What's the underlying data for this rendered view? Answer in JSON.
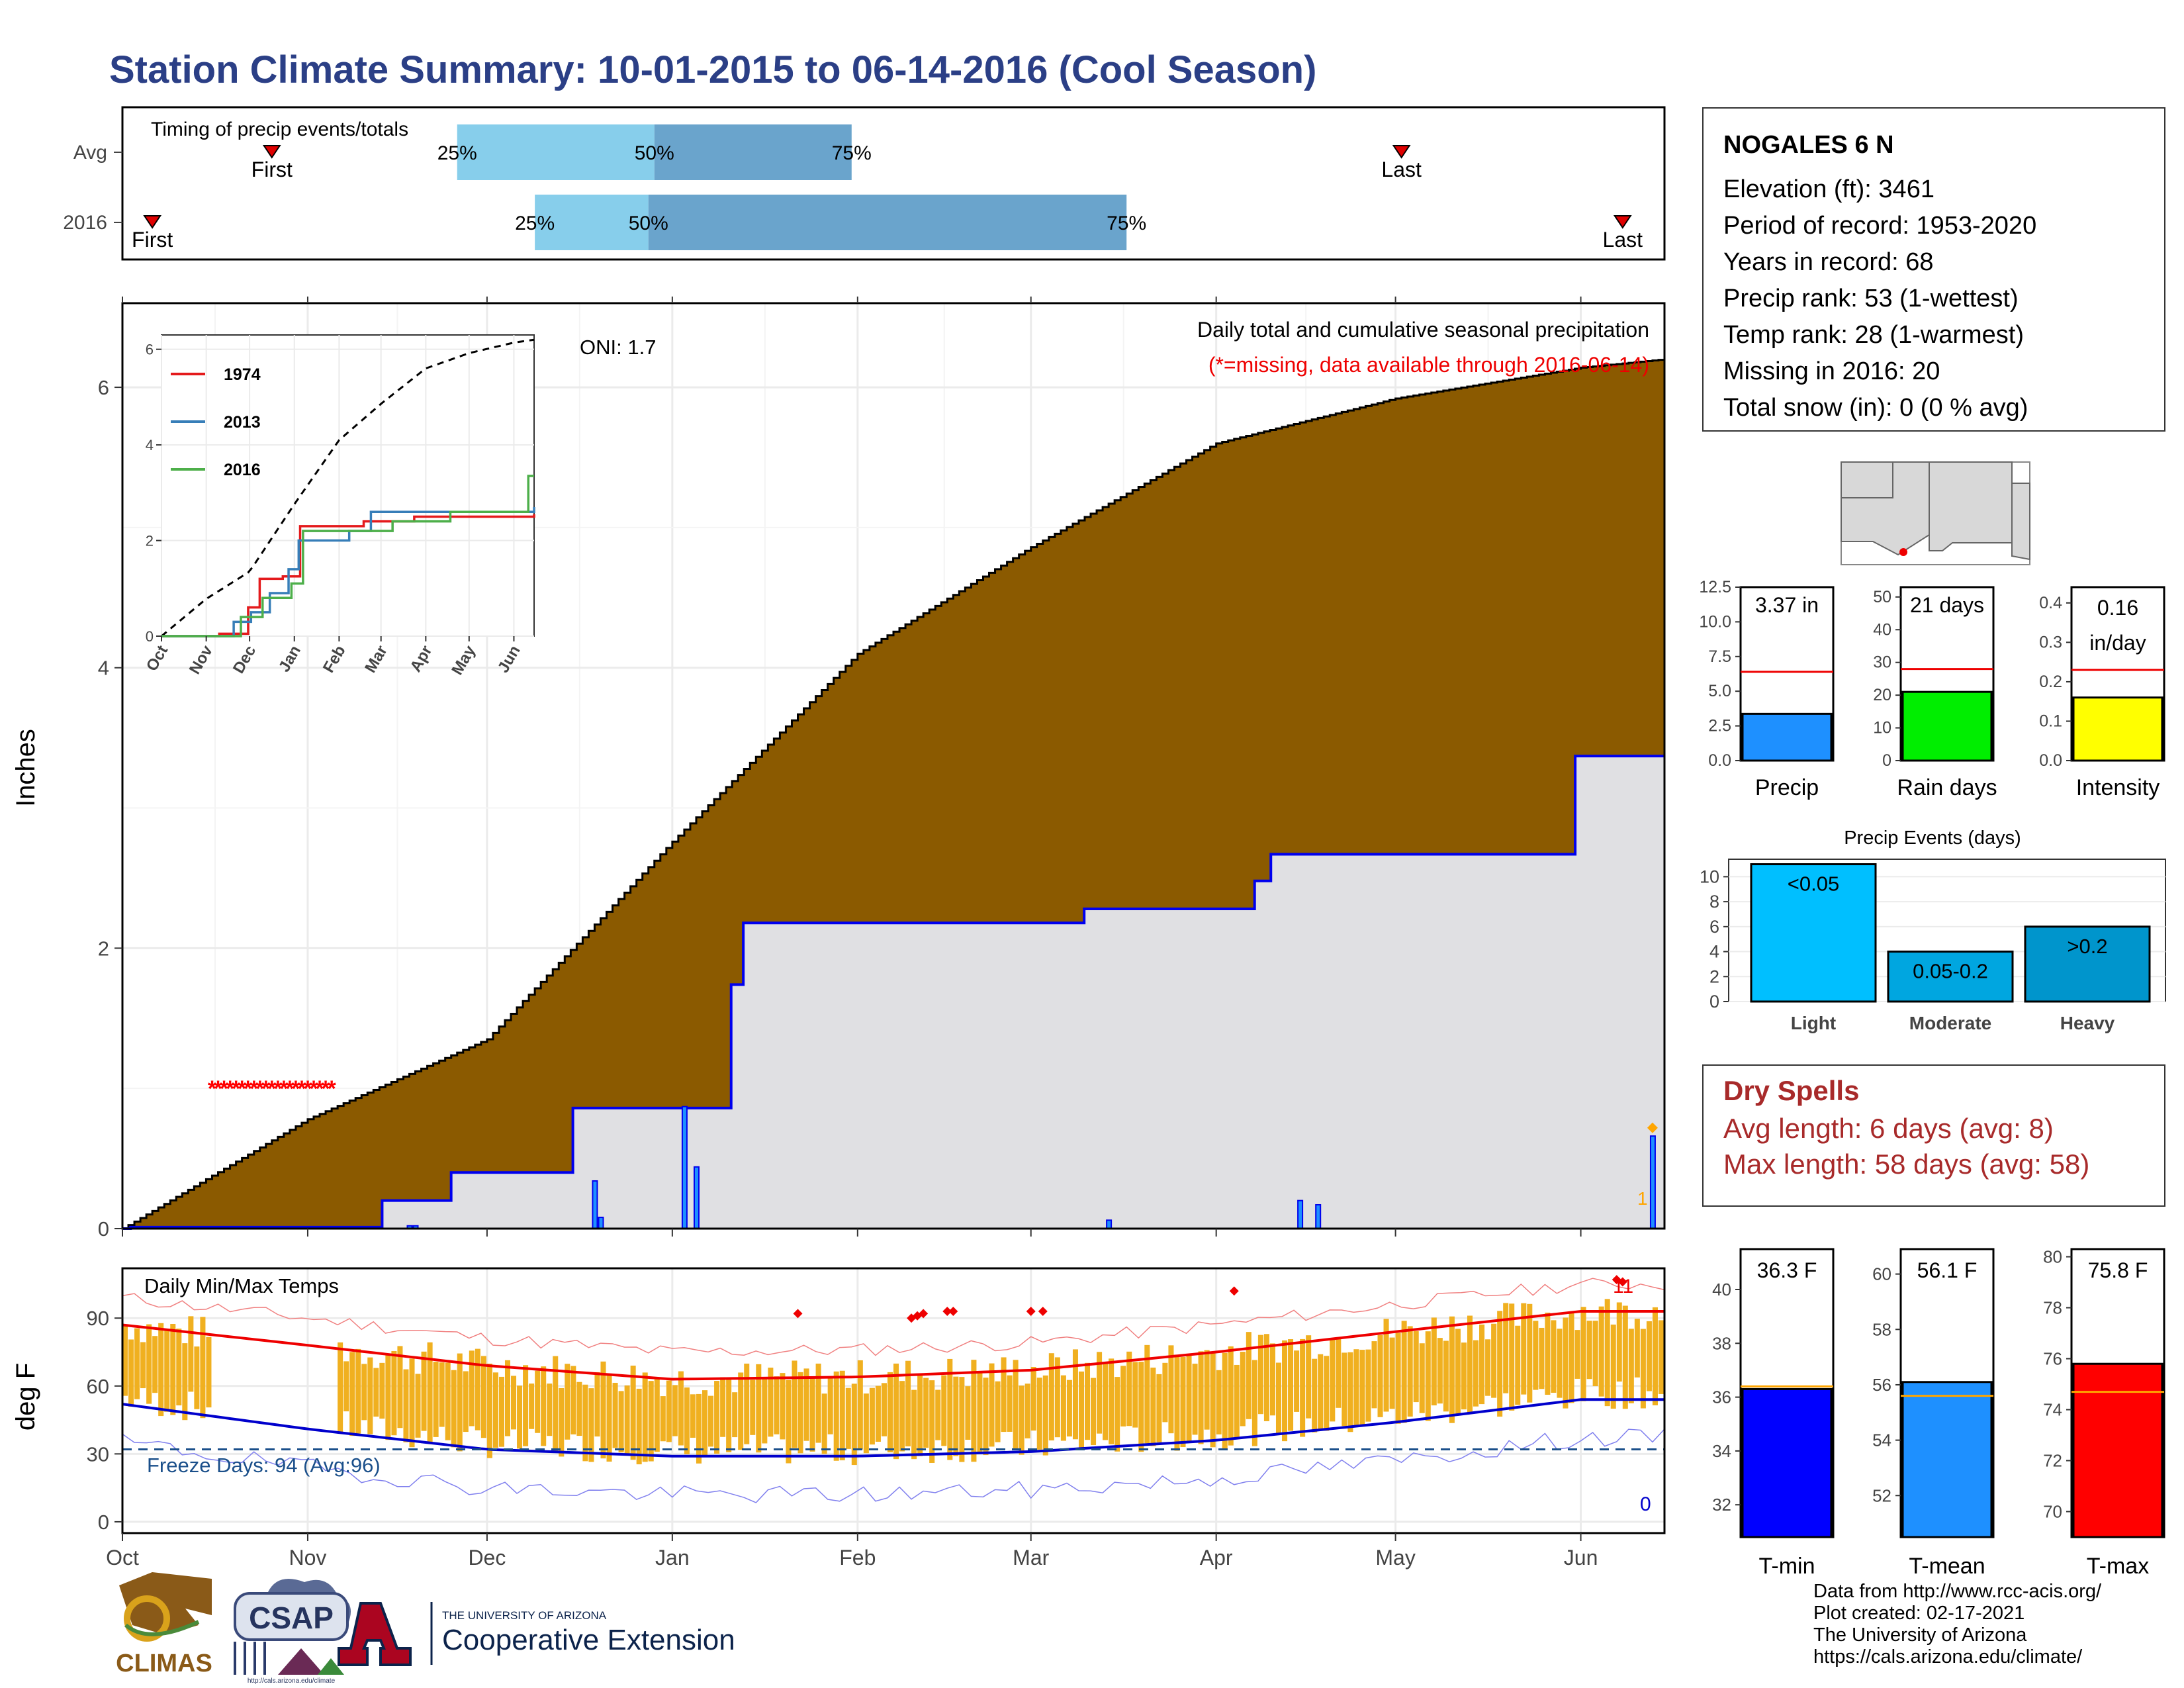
{
  "title": "Station Climate Summary: 10-01-2015 to 06-14-2016 (Cool Season)",
  "timing": {
    "label": "Timing of precip events/totals",
    "rows": [
      {
        "name": "Avg",
        "first": "First",
        "last": "Last",
        "p25": "25%",
        "p50": "50%",
        "p75": "75%",
        "first_day": 25,
        "last_day": 214,
        "p25_day": 56,
        "p50_day": 89,
        "p75_day": 122
      },
      {
        "name": "2016",
        "first": "First",
        "last": "Last",
        "p25": "25%",
        "p50": "50%",
        "p75": "75%",
        "first_day": 5,
        "last_day": 251,
        "p25_day": 69,
        "p50_day": 88,
        "p75_day": 168
      }
    ],
    "colors": {
      "light": "#87ceeb",
      "dark": "#6aa4cc",
      "marker": "#e00000"
    }
  },
  "station": {
    "name": "NOGALES 6 N",
    "lines": [
      "Elevation (ft): 3461",
      "Period of record: 1953-2020",
      "Years in record: 68",
      "Precip rank: 53 (1-wettest)",
      "Temp rank: 28 (1-warmest)",
      "Missing in 2016: 20",
      "Total snow (in): 0 (0 % avg)"
    ]
  },
  "precip_panel": {
    "ylabel": "Inches",
    "oni": "ONI: 1.7",
    "caption1": "Daily total and cumulative seasonal precipitation",
    "caption2": "(*=missing, data available through 2016-06-14)",
    "yticks": [
      "0",
      "2",
      "4",
      "6"
    ],
    "ylim": [
      0,
      6.6
    ],
    "trace_mark": "1",
    "colors": {
      "avg_fill": "#8b5a00",
      "obs_fill": "#e0e0e3",
      "obs_line": "#0000ee",
      "missing": "#ff0000",
      "trace": "#ffa500"
    }
  },
  "inset": {
    "years": [
      "1974",
      "2013",
      "2016"
    ],
    "colors": [
      "#e41a1c",
      "#377eb8",
      "#4daf4a"
    ],
    "months": [
      "Oct",
      "Nov",
      "Dec",
      "Jan",
      "Feb",
      "Mar",
      "Apr",
      "May",
      "Jun"
    ],
    "yticks": [
      "0",
      "2",
      "4",
      "6"
    ]
  },
  "temp_panel": {
    "ylabel": "deg F",
    "label": "Daily Min/Max Temps",
    "freeze": "Freeze Days: 94 (Avg:96)",
    "count_max": "11",
    "count_min": "0",
    "yticks": [
      "0",
      "30",
      "60",
      "90"
    ],
    "months": [
      "Oct",
      "Nov",
      "Dec",
      "Jan",
      "Feb",
      "Mar",
      "Apr",
      "May",
      "Jun"
    ],
    "colors": {
      "bars": "#f0b020",
      "max_avg": "#ee0000",
      "min_avg": "#0000cc",
      "freeze": "#1a4f8a"
    }
  },
  "mini": {
    "precip": {
      "value_label": "3.37 in",
      "value": 3.37,
      "avg": 6.4,
      "yticks": [
        "0.0",
        "2.5",
        "5.0",
        "7.5",
        "10.0",
        "12.5"
      ],
      "ymax": 12.5,
      "label": "Precip",
      "color": "#1e90ff"
    },
    "raindays": {
      "value_label": "21 days",
      "value": 21,
      "avg": 28,
      "yticks": [
        "0",
        "10",
        "20",
        "30",
        "40",
        "50"
      ],
      "ymax": 53,
      "label": "Rain days",
      "color": "#00ee00"
    },
    "intensity": {
      "value_label1": "0.16",
      "value_label2": "in/day",
      "value": 0.16,
      "avg": 0.23,
      "yticks": [
        "0.0",
        "0.1",
        "0.2",
        "0.3",
        "0.4"
      ],
      "ymax": 0.44,
      "label": "Intensity",
      "color": "#ffff00"
    }
  },
  "events": {
    "title": "Precip Events (days)",
    "yticks": [
      "0",
      "2",
      "4",
      "6",
      "8",
      "10"
    ],
    "categories": [
      "Light",
      "Moderate",
      "Heavy"
    ],
    "bar_labels": [
      "<0.05",
      "0.05-0.2",
      ">0.2"
    ],
    "values": [
      11,
      4,
      6
    ],
    "colors": [
      "#00bfff",
      "#00a6e0",
      "#0095cc"
    ]
  },
  "dry_spells": {
    "title": "Dry Spells",
    "line1": "Avg length: 6 days (avg: 8)",
    "line2": "Max length: 58 days (avg: 58)"
  },
  "temp_bars": {
    "tmin": {
      "value_label": "36.3 F",
      "value": 36.3,
      "avg": 36.4,
      "yticks": [
        "32",
        "34",
        "36",
        "38",
        "40"
      ],
      "ymin": 30.8,
      "ymax": 41.5,
      "label": "T-min",
      "color": "#0000ff"
    },
    "tmean": {
      "value_label": "56.1 F",
      "value": 56.1,
      "avg": 55.6,
      "yticks": [
        "52",
        "54",
        "56",
        "58",
        "60"
      ],
      "ymin": 50.5,
      "ymax": 60.9,
      "label": "T-mean",
      "color": "#1e90ff"
    },
    "tmax": {
      "value_label": "75.8 F",
      "value": 75.8,
      "avg": 74.7,
      "yticks": [
        "70",
        "72",
        "74",
        "76",
        "78",
        "80"
      ],
      "ymin": 69.0,
      "ymax": 80.3,
      "label": "T-max",
      "color": "#ff0000"
    },
    "avg_color": "#ffa500"
  },
  "credits": [
    "Data from http://www.rcc-acis.org/",
    "Plot created: 02-17-2021",
    "The University of Arizona",
    "https://cals.arizona.edu/climate/"
  ],
  "logos": {
    "climas": "CLIMAS",
    "csap": "CSAP",
    "csap_url": "http://cals.arizona.edu/climate",
    "ua_small": "THE UNIVERSITY OF ARIZONA",
    "ua_big": "Cooperative Extension"
  },
  "chart_data": [
    {
      "type": "area",
      "title": "Daily total and cumulative seasonal precipitation",
      "ylabel": "Inches",
      "ylim": [
        0,
        6.6
      ],
      "x": [
        "Oct",
        "Nov",
        "Dec",
        "Jan",
        "Feb",
        "Mar",
        "Apr",
        "May",
        "Jun",
        "Jun 14"
      ],
      "series": [
        {
          "name": "Avg",
          "values": [
            0.0,
            0.78,
            1.35,
            2.76,
            4.1,
            4.86,
            5.6,
            5.92,
            6.14,
            6.2
          ]
        },
        {
          "name": "2016",
          "values": [
            0.0,
            0.0,
            0.4,
            0.86,
            2.18,
            2.22,
            2.45,
            2.67,
            2.67,
            3.37
          ]
        }
      ]
    },
    {
      "type": "line",
      "title": "Daily Min/Max Temps",
      "ylabel": "deg F",
      "ylim": [
        -5,
        112
      ],
      "x": [
        "Oct",
        "Nov",
        "Dec",
        "Jan",
        "Feb",
        "Mar",
        "Apr",
        "May",
        "Jun"
      ],
      "series": [
        {
          "name": "Avg max",
          "values": [
            87,
            78,
            69,
            63,
            64,
            67,
            75,
            84,
            93
          ]
        },
        {
          "name": "Avg min",
          "values": [
            52,
            41,
            32,
            29,
            29,
            31,
            36,
            44,
            54
          ]
        }
      ]
    }
  ]
}
